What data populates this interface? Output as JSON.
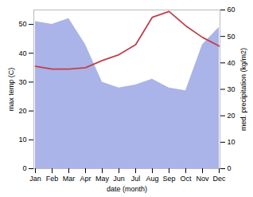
{
  "chart_data": {
    "type": "line",
    "xlabel": "date (month)",
    "ylabel": "max temp (C)",
    "y2label": "med. precipitation (kg/m2)",
    "categories": [
      "Jan",
      "Feb",
      "Mar",
      "Apr",
      "May",
      "Jun",
      "Jul",
      "Aug",
      "Sep",
      "Oct",
      "Nov",
      "Dec"
    ],
    "series": [
      {
        "type": "area",
        "color": "#aab4e8",
        "values": [
          51,
          50,
          52,
          43,
          30,
          28,
          29,
          31,
          28,
          27,
          43,
          49
        ]
      },
      {
        "type": "line",
        "color": "#c0404a",
        "values": [
          35.5,
          34.5,
          34.5,
          35.0,
          37.5,
          39.5,
          43.0,
          52.5,
          54.5,
          49.5,
          45.5,
          42.5
        ]
      }
    ],
    "ylim": [
      0,
      55
    ],
    "yticks": [
      0,
      10,
      20,
      30,
      40,
      50
    ],
    "y2lim": [
      0,
      60
    ],
    "y2ticks": [
      0,
      10,
      20,
      30,
      40,
      50,
      60
    ]
  }
}
